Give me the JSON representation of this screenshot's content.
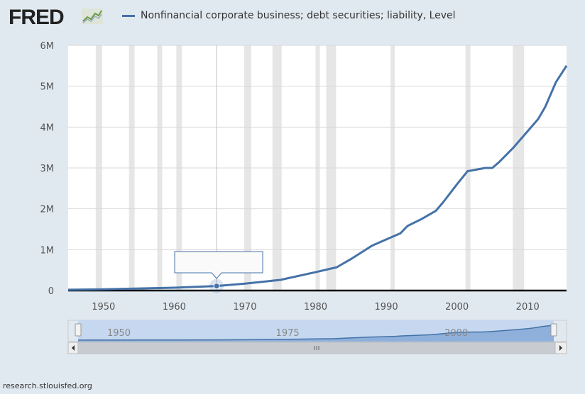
{
  "logo": "FRED",
  "footer": "research.stlouisfed.org",
  "colors": {
    "series": "#4572a7",
    "recession": "#e6e6e6",
    "background": "#e1e9f0",
    "navigator_fill": "#8fb0db",
    "navigator_mask": "#c5d8f0"
  },
  "tooltip": {
    "text": ""
  },
  "chart_data": {
    "type": "line",
    "title": "",
    "legend": {
      "placement": "top",
      "entries": [
        "Nonfinancial corporate business; debt securities; liability, Level"
      ]
    },
    "xlim": [
      1945,
      2015.5
    ],
    "ylim": [
      0,
      6000000
    ],
    "x_ticks": [
      1950,
      1960,
      1970,
      1980,
      1990,
      2000,
      2010
    ],
    "y_ticks": [
      {
        "v": 0,
        "label": "0"
      },
      {
        "v": 1000000,
        "label": "1M"
      },
      {
        "v": 2000000,
        "label": "2M"
      },
      {
        "v": 3000000,
        "label": "3M"
      },
      {
        "v": 4000000,
        "label": "4M"
      },
      {
        "v": 5000000,
        "label": "5M"
      },
      {
        "v": 6000000,
        "label": "6M"
      }
    ],
    "grid": true,
    "highlighted_point": {
      "x": 1966,
      "y": 110000
    },
    "recessions": [
      [
        1948.9,
        1949.8
      ],
      [
        1953.6,
        1954.4
      ],
      [
        1957.6,
        1958.3
      ],
      [
        1960.3,
        1961.1
      ],
      [
        1969.9,
        1970.9
      ],
      [
        1973.9,
        1975.2
      ],
      [
        1980.0,
        1980.6
      ],
      [
        1981.5,
        1982.9
      ],
      [
        1990.6,
        1991.2
      ],
      [
        2001.2,
        2001.9
      ],
      [
        2007.9,
        2009.5
      ]
    ],
    "series": [
      {
        "name": "Nonfinancial corporate business; debt securities; liability, Level",
        "x": [
          1945,
          1950,
          1955,
          1960,
          1966,
          1970,
          1975,
          1980,
          1983,
          1985,
          1988,
          1990,
          1992,
          1993,
          1995,
          1997,
          1998,
          2000,
          2001.5,
          2004,
          2005,
          2006,
          2008,
          2010,
          2011.5,
          2012.5,
          2014,
          2015.5
        ],
        "y": [
          20000,
          30000,
          50000,
          70000,
          110000,
          170000,
          260000,
          450000,
          570000,
          770000,
          1100000,
          1250000,
          1400000,
          1580000,
          1750000,
          1950000,
          2150000,
          2600000,
          2920000,
          3000000,
          3000000,
          3150000,
          3500000,
          3900000,
          4200000,
          4500000,
          5100000,
          5500000
        ]
      }
    ],
    "navigator": {
      "labels": [
        1950,
        1975,
        2000
      ]
    }
  }
}
